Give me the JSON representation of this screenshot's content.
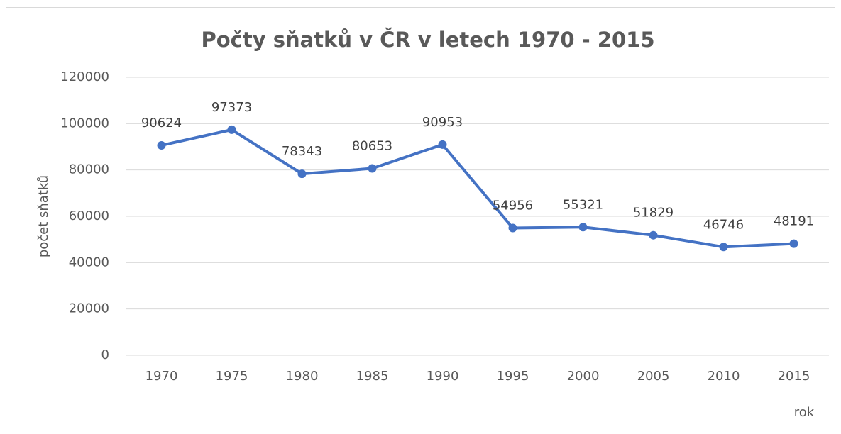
{
  "chart_data": {
    "type": "line",
    "title": "Počty sňatků v ČR v letech 1970 - 2015",
    "x_label": "rok",
    "y_label": "počet sňatků",
    "categories": [
      "1970",
      "1975",
      "1980",
      "1985",
      "1990",
      "1995",
      "2000",
      "2005",
      "2010",
      "2015"
    ],
    "series": [
      {
        "name": "počet sňatků",
        "color": "#4472c4",
        "values": [
          90624,
          97373,
          78343,
          80653,
          90953,
          54956,
          55321,
          51829,
          46746,
          48191
        ]
      }
    ],
    "ylim": [
      0,
      120000
    ],
    "yticks": [
      0,
      20000,
      40000,
      60000,
      80000,
      100000,
      120000
    ],
    "grid": true
  }
}
